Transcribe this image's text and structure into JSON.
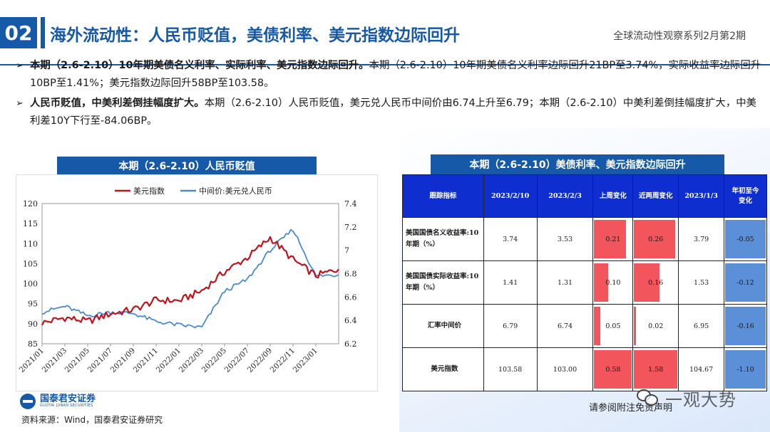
{
  "header": {
    "section_number": "02",
    "title": "海外流动性：人民币贬值，美债利率、美元指数边际回升",
    "series": "全球流动性观察系列2月第2期"
  },
  "bullets": [
    {
      "bold": "本期（2.6-2.10）10年期美债名义利率、实际利率、美元指数边际回升。",
      "text": "本期（2.6-2.10）10年期美债名义利率边际回升21BP至3.74%，实际收益率边际回升10BP至1.41%；美元指数边际回升58BP至103.58。"
    },
    {
      "bold": "人民币贬值，中美利差倒挂幅度扩大。",
      "text": "本期（2.6-2.10）人民币贬值，美元兑人民币中间价由6.74上升至6.79；本期（2.6-2.10）中美利差倒挂幅度扩大，中美利差10Y下行至-84.06BP。"
    }
  ],
  "chart_title": "本期（2.6-2.10）人民币贬值",
  "chart_data": {
    "type": "line",
    "title": "本期（2.6-2.10）人民币贬值",
    "x": [
      "2021/01",
      "2021/03",
      "2021/05",
      "2021/07",
      "2021/09",
      "2021/11",
      "2022/01",
      "2022/03",
      "2022/05",
      "2022/07",
      "2022/09",
      "2022/11",
      "2023/01",
      "2023/02"
    ],
    "x_tick_labels": [
      "2021/01",
      "2021/03",
      "2021/05",
      "2021/07",
      "2021/09",
      "2021/11",
      "2022/01",
      "2022/03",
      "2022/05",
      "2022/07",
      "2022/09",
      "2022/11",
      "2023/01"
    ],
    "yleft_ticks": [
      "85",
      "90",
      "95",
      "100",
      "105",
      "110",
      "115",
      "120"
    ],
    "yright_ticks": [
      "6.2",
      "6.4",
      "6.6",
      "6.8",
      "7",
      "7.2",
      "7.4"
    ],
    "yleft_lim": [
      85,
      120
    ],
    "yright_lim": [
      6.2,
      7.4
    ],
    "legend_position": "top",
    "grid": false,
    "series": [
      {
        "name": "美元指数",
        "axis": "left",
        "color": "#c0141c",
        "values": [
          90.2,
          91.5,
          90.6,
          92.5,
          93.5,
          95.9,
          95.7,
          98.2,
          103.0,
          106.5,
          111.5,
          106.0,
          102.0,
          103.6
        ]
      },
      {
        "name": "中间价:美元兑人民币",
        "axis": "right",
        "color": "#4a8ad0",
        "values": [
          6.47,
          6.52,
          6.44,
          6.47,
          6.46,
          6.39,
          6.36,
          6.34,
          6.65,
          6.75,
          7.0,
          7.18,
          6.78,
          6.79
        ]
      }
    ]
  },
  "table_title": "本期（2.6-2.10）美债利率、美元指数边际回升",
  "table": {
    "headers": [
      "跟踪指标",
      "2023/2/10",
      "2023/2/3",
      "上周变化",
      "近两周变化",
      "2023/1/3",
      "年初至今变化"
    ],
    "rows": [
      {
        "metric": "美国国债名义收益率:10年期（%）",
        "v1": "3.74",
        "v2": "3.53",
        "wk": "0.21",
        "wk_frac": 0.85,
        "two": "0.26",
        "two_frac": 0.95,
        "jan": "3.79",
        "ytd": "-0.05",
        "ytd_frac": 1.0
      },
      {
        "metric": "美国国债实际收益率:10年期（%）",
        "v1": "1.41",
        "v2": "1.31",
        "wk": "0.10",
        "wk_frac": 0.4,
        "two": "0.16",
        "two_frac": 0.6,
        "jan": "1.53",
        "ytd": "-0.12",
        "ytd_frac": 1.0
      },
      {
        "metric": "汇率中间价",
        "v1": "6.79",
        "v2": "6.74",
        "wk": "0.05",
        "wk_frac": 0.2,
        "two": "0.02",
        "two_frac": 0.08,
        "jan": "6.95",
        "ytd": "-0.16",
        "ytd_frac": 1.0
      },
      {
        "metric": "美元指数",
        "v1": "103.58",
        "v2": "103.00",
        "wk": "0.58",
        "wk_frac": 1.0,
        "two": "1.58",
        "two_frac": 1.0,
        "jan": "104.67",
        "ytd": "-1.10",
        "ytd_frac": 1.0
      }
    ]
  },
  "footer": {
    "logo_zh": "国泰君安证券",
    "logo_en": "GUOTAI JUNAN SECURITIES",
    "source": "资料来源：Wind，国泰君安证券研究",
    "disclaimer": "请参阅附注免责声明",
    "watermark": "一观大势"
  },
  "colors": {
    "brand_blue": "#1559a8",
    "table_header_blue": "#0f2ecf",
    "bar_red": "#f2565c",
    "bar_blue": "#5b8fd8"
  }
}
